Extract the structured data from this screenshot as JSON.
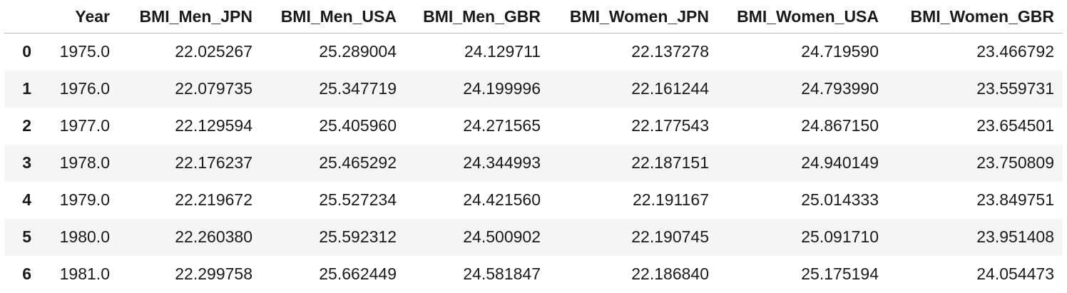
{
  "table": {
    "index_header": "",
    "columns": [
      "Year",
      "BMI_Men_JPN",
      "BMI_Men_USA",
      "BMI_Men_GBR",
      "BMI_Women_JPN",
      "BMI_Women_USA",
      "BMI_Women_GBR"
    ],
    "rows": [
      {
        "index": "0",
        "cells": [
          "1975.0",
          "22.025267",
          "25.289004",
          "24.129711",
          "22.137278",
          "24.719590",
          "23.466792"
        ]
      },
      {
        "index": "1",
        "cells": [
          "1976.0",
          "22.079735",
          "25.347719",
          "24.199996",
          "22.161244",
          "24.793990",
          "23.559731"
        ]
      },
      {
        "index": "2",
        "cells": [
          "1977.0",
          "22.129594",
          "25.405960",
          "24.271565",
          "22.177543",
          "24.867150",
          "23.654501"
        ]
      },
      {
        "index": "3",
        "cells": [
          "1978.0",
          "22.176237",
          "25.465292",
          "24.344993",
          "22.187151",
          "24.940149",
          "23.750809"
        ]
      },
      {
        "index": "4",
        "cells": [
          "1979.0",
          "22.219672",
          "25.527234",
          "24.421560",
          "22.191167",
          "25.014333",
          "23.849751"
        ]
      },
      {
        "index": "5",
        "cells": [
          "1980.0",
          "22.260380",
          "25.592312",
          "24.500902",
          "22.190745",
          "25.091710",
          "23.951408"
        ]
      },
      {
        "index": "6",
        "cells": [
          "1981.0",
          "22.299758",
          "25.662449",
          "24.581847",
          "22.186840",
          "25.175194",
          "24.054473"
        ]
      }
    ]
  }
}
